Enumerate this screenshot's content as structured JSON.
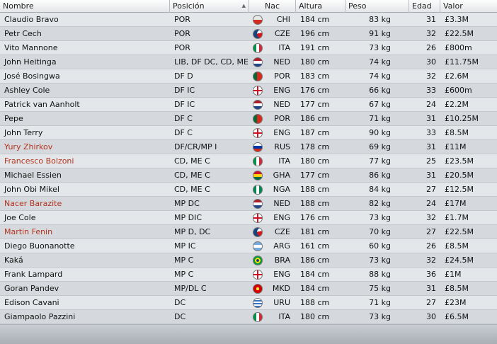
{
  "header": {
    "nombre": "Nombre",
    "posicion": "Posición",
    "nac": "Nac",
    "altura": "Altura",
    "peso": "Peso",
    "edad": "Edad",
    "valor": "Valor"
  },
  "players": [
    {
      "name": "Claudio Bravo",
      "pos": "POR",
      "nat": "CHI",
      "height": "184 cm",
      "weight": "83 kg",
      "age": "31",
      "value": "£3.3M",
      "highlight": false
    },
    {
      "name": "Petr Cech",
      "pos": "POR",
      "nat": "CZE",
      "height": "196 cm",
      "weight": "91 kg",
      "age": "32",
      "value": "£22.5M",
      "highlight": false
    },
    {
      "name": "Vito Mannone",
      "pos": "POR",
      "nat": "ITA",
      "height": "191 cm",
      "weight": "73 kg",
      "age": "26",
      "value": "£800m",
      "highlight": false
    },
    {
      "name": "John Heitinga",
      "pos": "LIB, DF DC, CD, ME ...",
      "nat": "NED",
      "height": "180 cm",
      "weight": "74 kg",
      "age": "30",
      "value": "£11.75M",
      "highlight": false
    },
    {
      "name": "José Bosingwa",
      "pos": "DF D",
      "nat": "POR",
      "height": "183 cm",
      "weight": "74 kg",
      "age": "32",
      "value": "£2.6M",
      "highlight": false
    },
    {
      "name": "Ashley Cole",
      "pos": "DF IC",
      "nat": "ENG",
      "height": "176 cm",
      "weight": "66 kg",
      "age": "33",
      "value": "£600m",
      "highlight": false
    },
    {
      "name": "Patrick van Aanholt",
      "pos": "DF IC",
      "nat": "NED",
      "height": "177 cm",
      "weight": "67 kg",
      "age": "24",
      "value": "£2.2M",
      "highlight": false
    },
    {
      "name": "Pepe",
      "pos": "DF C",
      "nat": "POR",
      "height": "186 cm",
      "weight": "71 kg",
      "age": "31",
      "value": "£10.25M",
      "highlight": false
    },
    {
      "name": "John Terry",
      "pos": "DF C",
      "nat": "ENG",
      "height": "187 cm",
      "weight": "90 kg",
      "age": "33",
      "value": "£8.5M",
      "highlight": false
    },
    {
      "name": "Yury Zhirkov",
      "pos": "DF/CR/MP I",
      "nat": "RUS",
      "height": "178 cm",
      "weight": "69 kg",
      "age": "31",
      "value": "£11M",
      "highlight": true
    },
    {
      "name": "Francesco Bolzoni",
      "pos": "CD, ME C",
      "nat": "ITA",
      "height": "180 cm",
      "weight": "77 kg",
      "age": "25",
      "value": "£23.5M",
      "highlight": true
    },
    {
      "name": "Michael Essien",
      "pos": "CD, ME C",
      "nat": "GHA",
      "height": "177 cm",
      "weight": "86 kg",
      "age": "31",
      "value": "£20.5M",
      "highlight": false
    },
    {
      "name": "John Obi Mikel",
      "pos": "CD, ME C",
      "nat": "NGA",
      "height": "188 cm",
      "weight": "84 kg",
      "age": "27",
      "value": "£12.5M",
      "highlight": false
    },
    {
      "name": "Nacer Barazite",
      "pos": "MP DC",
      "nat": "NED",
      "height": "188 cm",
      "weight": "82 kg",
      "age": "24",
      "value": "£17M",
      "highlight": true
    },
    {
      "name": "Joe Cole",
      "pos": "MP DIC",
      "nat": "ENG",
      "height": "176 cm",
      "weight": "73 kg",
      "age": "32",
      "value": "£1.7M",
      "highlight": false
    },
    {
      "name": "Martin Fenin",
      "pos": "MP D, DC",
      "nat": "CZE",
      "height": "181 cm",
      "weight": "70 kg",
      "age": "27",
      "value": "£22.5M",
      "highlight": true
    },
    {
      "name": "Diego Buonanotte",
      "pos": "MP IC",
      "nat": "ARG",
      "height": "161 cm",
      "weight": "60 kg",
      "age": "26",
      "value": "£8.5M",
      "highlight": false
    },
    {
      "name": "Kaká",
      "pos": "MP C",
      "nat": "BRA",
      "height": "186 cm",
      "weight": "73 kg",
      "age": "32",
      "value": "£24.5M",
      "highlight": false
    },
    {
      "name": "Frank Lampard",
      "pos": "MP C",
      "nat": "ENG",
      "height": "184 cm",
      "weight": "88 kg",
      "age": "36",
      "value": "£1M",
      "highlight": false
    },
    {
      "name": "Goran Pandev",
      "pos": "MP/DL C",
      "nat": "MKD",
      "height": "184 cm",
      "weight": "75 kg",
      "age": "31",
      "value": "£8.5M",
      "highlight": false
    },
    {
      "name": "Edison Cavani",
      "pos": "DC",
      "nat": "URU",
      "height": "188 cm",
      "weight": "71 kg",
      "age": "27",
      "value": "£23M",
      "highlight": false
    },
    {
      "name": "Giampaolo Pazzini",
      "pos": "DC",
      "nat": "ITA",
      "height": "180 cm",
      "weight": "73 kg",
      "age": "30",
      "value": "£6.5M",
      "highlight": false
    }
  ]
}
